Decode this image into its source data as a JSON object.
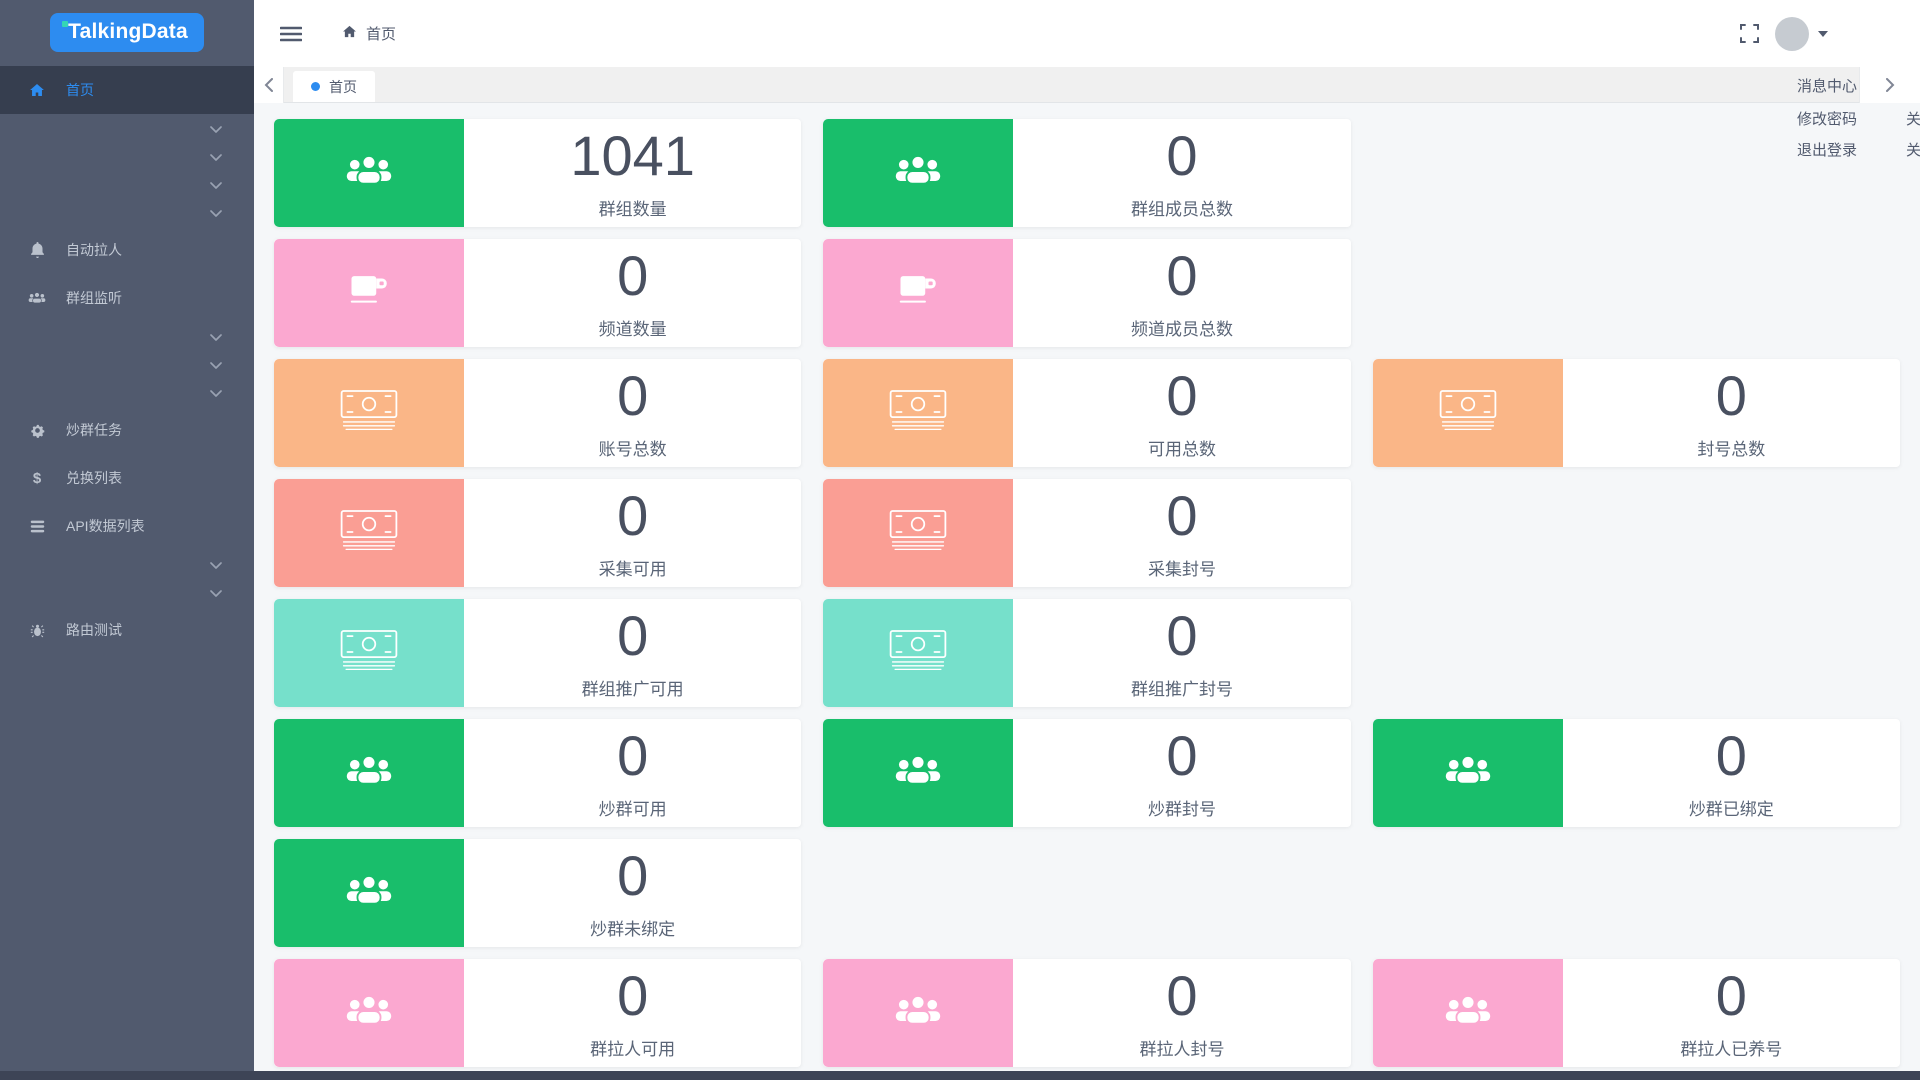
{
  "app": {
    "logo_text": "TalkingData"
  },
  "colors": {
    "accent": "#2d8cf0",
    "logo_bg": "#2d8cf0",
    "logo_dot": "#35d6b4",
    "sidebar_bg": "#515a6e",
    "sidebar_active_bg": "#363e4f",
    "green": "#19be6b",
    "pink": "#fba8d0",
    "orange": "#fab687",
    "salmon": "#fa9e94",
    "teal": "#76e0cb"
  },
  "sidebar": {
    "items": [
      {
        "type": "item",
        "icon": "home-icon",
        "label": "首页",
        "active": true
      },
      {
        "type": "chevron"
      },
      {
        "type": "chevron"
      },
      {
        "type": "chevron"
      },
      {
        "type": "chevron"
      },
      {
        "type": "item",
        "icon": "bell-icon",
        "label": "自动拉人"
      },
      {
        "type": "item",
        "icon": "users-icon",
        "label": "群组监听"
      },
      {
        "type": "chevron"
      },
      {
        "type": "chevron"
      },
      {
        "type": "chevron"
      },
      {
        "type": "item",
        "icon": "gear-icon",
        "label": "炒群任务"
      },
      {
        "type": "item",
        "icon": "dollar-icon",
        "label": "兑换列表"
      },
      {
        "type": "item",
        "icon": "list-icon",
        "label": "API数据列表"
      },
      {
        "type": "chevron"
      },
      {
        "type": "chevron"
      },
      {
        "type": "item",
        "icon": "bug-icon",
        "label": "路由测试"
      }
    ]
  },
  "header": {
    "breadcrumb_home": "首页"
  },
  "tabbar": {
    "active_tab": "首页"
  },
  "user_menu": {
    "items": [
      "消息中心",
      "修改密码",
      "退出登录"
    ]
  },
  "edge_menu": {
    "items": [
      "关",
      "关"
    ]
  },
  "stats": [
    {
      "row": 1,
      "col": 1,
      "value": "1041",
      "label": "群组数量",
      "color": "green",
      "icon": "users"
    },
    {
      "row": 1,
      "col": 2,
      "value": "0",
      "label": "群组成员总数",
      "color": "green",
      "icon": "users"
    },
    {
      "row": 2,
      "col": 1,
      "value": "0",
      "label": "频道数量",
      "color": "pink",
      "icon": "coffee"
    },
    {
      "row": 2,
      "col": 2,
      "value": "0",
      "label": "频道成员总数",
      "color": "pink",
      "icon": "coffee"
    },
    {
      "row": 3,
      "col": 1,
      "value": "0",
      "label": "账号总数",
      "color": "orange",
      "icon": "money"
    },
    {
      "row": 3,
      "col": 2,
      "value": "0",
      "label": "可用总数",
      "color": "orange",
      "icon": "money"
    },
    {
      "row": 3,
      "col": 3,
      "value": "0",
      "label": "封号总数",
      "color": "orange",
      "icon": "money"
    },
    {
      "row": 4,
      "col": 1,
      "value": "0",
      "label": "采集可用",
      "color": "salmon",
      "icon": "money"
    },
    {
      "row": 4,
      "col": 2,
      "value": "0",
      "label": "采集封号",
      "color": "salmon",
      "icon": "money"
    },
    {
      "row": 5,
      "col": 1,
      "value": "0",
      "label": "群组推广可用",
      "color": "teal",
      "icon": "money"
    },
    {
      "row": 5,
      "col": 2,
      "value": "0",
      "label": "群组推广封号",
      "color": "teal",
      "icon": "money"
    },
    {
      "row": 6,
      "col": 1,
      "value": "0",
      "label": "炒群可用",
      "color": "green",
      "icon": "users"
    },
    {
      "row": 6,
      "col": 2,
      "value": "0",
      "label": "炒群封号",
      "color": "green",
      "icon": "users"
    },
    {
      "row": 6,
      "col": 3,
      "value": "0",
      "label": "炒群已绑定",
      "color": "green",
      "icon": "users"
    },
    {
      "row": 7,
      "col": 1,
      "value": "0",
      "label": "炒群未绑定",
      "color": "green",
      "icon": "users"
    },
    {
      "row": 8,
      "col": 1,
      "value": "0",
      "label": "群拉人可用",
      "color": "pink",
      "icon": "users"
    },
    {
      "row": 8,
      "col": 2,
      "value": "0",
      "label": "群拉人封号",
      "color": "pink",
      "icon": "users"
    },
    {
      "row": 8,
      "col": 3,
      "value": "0",
      "label": "群拉人已养号",
      "color": "pink",
      "icon": "users"
    }
  ]
}
